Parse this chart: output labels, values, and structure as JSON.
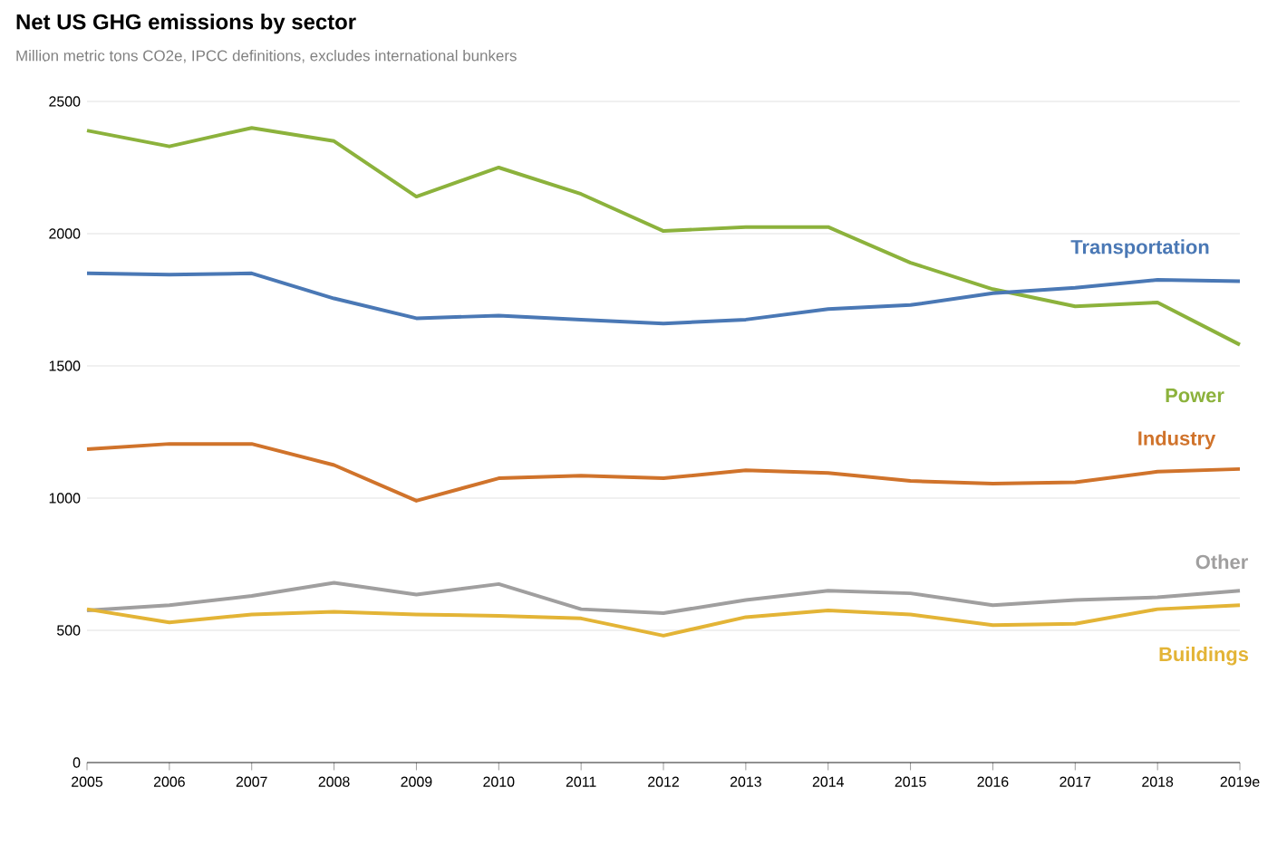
{
  "chart_data": {
    "type": "line",
    "title": "Net US GHG emissions by sector",
    "subtitle": "Million metric tons CO2e, IPCC definitions, excludes international bunkers",
    "categories": [
      "2005",
      "2006",
      "2007",
      "2008",
      "2009",
      "2010",
      "2011",
      "2012",
      "2013",
      "2014",
      "2015",
      "2016",
      "2017",
      "2018",
      "2019e"
    ],
    "ylim": [
      0,
      2500
    ],
    "yticks": [
      0,
      500,
      1000,
      1500,
      2000,
      2500
    ],
    "grid": "y",
    "marker": "none",
    "line_style": "solid",
    "series": [
      {
        "name": "Power",
        "color": "#8cb23c",
        "values": [
          2390,
          2330,
          2400,
          2350,
          2140,
          2250,
          2150,
          2010,
          2025,
          2025,
          1890,
          1790,
          1725,
          1740,
          1580
        ]
      },
      {
        "name": "Transportation",
        "color": "#4a78b5",
        "values": [
          1850,
          1845,
          1850,
          1755,
          1680,
          1690,
          1675,
          1660,
          1675,
          1715,
          1730,
          1775,
          1795,
          1825,
          1820
        ]
      },
      {
        "name": "Industry",
        "color": "#d0732b",
        "values": [
          1185,
          1205,
          1205,
          1125,
          990,
          1075,
          1085,
          1075,
          1105,
          1095,
          1065,
          1055,
          1060,
          1100,
          1110
        ]
      },
      {
        "name": "Other",
        "color": "#a09f9f",
        "values": [
          575,
          595,
          630,
          680,
          635,
          675,
          580,
          565,
          615,
          650,
          640,
          595,
          615,
          625,
          650
        ]
      },
      {
        "name": "Buildings",
        "color": "#e3b436",
        "values": [
          580,
          530,
          560,
          570,
          560,
          555,
          545,
          480,
          550,
          575,
          560,
          520,
          525,
          580,
          595
        ]
      }
    ]
  }
}
